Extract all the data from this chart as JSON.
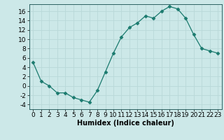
{
  "x": [
    0,
    1,
    2,
    3,
    4,
    5,
    6,
    7,
    8,
    9,
    10,
    11,
    12,
    13,
    14,
    15,
    16,
    17,
    18,
    19,
    20,
    21,
    22,
    23
  ],
  "y": [
    5,
    1,
    0,
    -1.5,
    -1.5,
    -2.5,
    -3,
    -3.5,
    -1,
    3,
    7,
    10.5,
    12.5,
    13.5,
    15,
    14.5,
    16,
    17,
    16.5,
    14.5,
    11,
    8,
    7.5,
    7
  ],
  "line_color": "#1a7a6e",
  "marker": "D",
  "marker_size": 2.5,
  "background_color": "#cce8e8",
  "grid_color": "#b8d8d8",
  "xlabel": "Humidex (Indice chaleur)",
  "ylim": [
    -5,
    17.5
  ],
  "yticks": [
    -4,
    -2,
    0,
    2,
    4,
    6,
    8,
    10,
    12,
    14,
    16
  ],
  "xticks": [
    0,
    1,
    2,
    3,
    4,
    5,
    6,
    7,
    8,
    9,
    10,
    11,
    12,
    13,
    14,
    15,
    16,
    17,
    18,
    19,
    20,
    21,
    22,
    23
  ],
  "xlim": [
    -0.5,
    23.5
  ],
  "xlabel_fontsize": 7,
  "tick_fontsize": 6.5
}
